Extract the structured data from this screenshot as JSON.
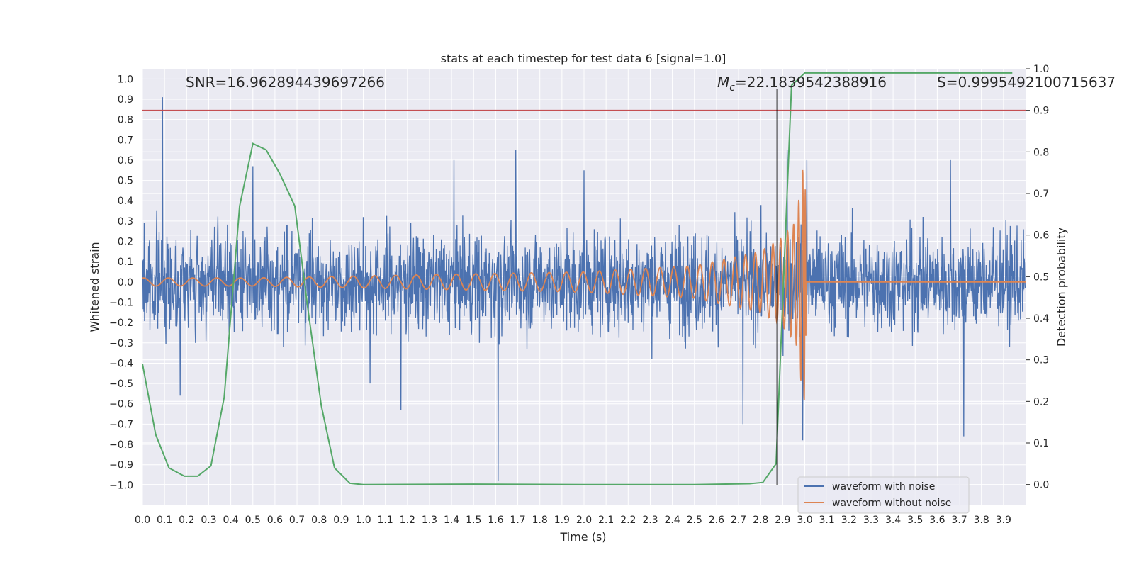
{
  "chart_data": {
    "type": "line",
    "title": "stats at each timestep for test data 6 [signal=1.0]",
    "xlabel": "Time (s)",
    "ylabel": "Whitened strain",
    "ylabel_right": "Detection probability",
    "xlim": [
      0.0,
      4.0
    ],
    "ylim": [
      -1.1,
      1.05
    ],
    "ylim_right": [
      -0.05,
      1.0
    ],
    "x_ticks": [
      "0.0",
      "0.1",
      "0.2",
      "0.3",
      "0.4",
      "0.5",
      "0.6",
      "0.7",
      "0.8",
      "0.9",
      "1.0",
      "1.1",
      "1.2",
      "1.3",
      "1.4",
      "1.5",
      "1.6",
      "1.7",
      "1.8",
      "1.9",
      "2.0",
      "2.1",
      "2.2",
      "2.3",
      "2.4",
      "2.5",
      "2.6",
      "2.7",
      "2.8",
      "2.9",
      "3.0",
      "3.1",
      "3.2",
      "3.3",
      "3.4",
      "3.5",
      "3.6",
      "3.7",
      "3.8",
      "3.9"
    ],
    "y_ticks": [
      "1.0",
      "0.9",
      "0.8",
      "0.7",
      "0.6",
      "0.5",
      "0.4",
      "0.3",
      "0.2",
      "0.1",
      "0.0",
      "−0.1",
      "−0.2",
      "−0.3",
      "−0.4",
      "−0.5",
      "−0.6",
      "−0.7",
      "−0.8",
      "−0.9",
      "−1.0"
    ],
    "y_ticks_right": [
      "1.0",
      "0.9",
      "0.8",
      "0.7",
      "0.6",
      "0.5",
      "0.4",
      "0.3",
      "0.2",
      "0.1",
      "0.0"
    ],
    "grid": true,
    "legend_position": "lower-right",
    "annotations": {
      "snr": "SNR=16.962894439697266",
      "mc_symbol": "M",
      "mc_subscript": "c",
      "mc_value": "=22.1839542388916",
      "s_value": "S=0.9995492100715637"
    },
    "threshold_right": 0.9,
    "merger_time": 2.875,
    "colors": {
      "noisy": "#4c72b0",
      "clean": "#dd8452",
      "probability": "#55a868",
      "threshold": "#c44e52",
      "marker": "#000000",
      "background": "#eaeaf2",
      "grid": "#ffffff"
    },
    "series": [
      {
        "name": "waveform with noise",
        "axis": "left",
        "description_points": [
          [
            0.09,
            0.91
          ],
          [
            0.17,
            -0.56
          ],
          [
            0.5,
            0.57
          ],
          [
            1.03,
            -0.5
          ],
          [
            1.17,
            -0.63
          ],
          [
            1.41,
            0.6
          ],
          [
            1.61,
            -0.98
          ],
          [
            1.69,
            0.65
          ],
          [
            2.0,
            0.55
          ],
          [
            2.72,
            -0.7
          ],
          [
            2.92,
            0.65
          ],
          [
            2.99,
            -0.78
          ],
          [
            3.01,
            0.6
          ],
          [
            3.66,
            0.6
          ],
          [
            3.72,
            -0.76
          ]
        ]
      },
      {
        "name": "waveform without noise",
        "axis": "left",
        "envelope_points": [
          [
            0.0,
            0.02
          ],
          [
            0.5,
            0.02
          ],
          [
            1.0,
            0.03
          ],
          [
            1.5,
            0.04
          ],
          [
            2.0,
            0.05
          ],
          [
            2.5,
            0.08
          ],
          [
            2.8,
            0.15
          ],
          [
            2.9,
            0.22
          ],
          [
            2.96,
            0.3
          ],
          [
            2.99,
            0.55
          ],
          [
            3.0,
            0.6
          ],
          [
            3.01,
            0.0
          ]
        ]
      },
      {
        "name": "",
        "axis": "right",
        "x": [
          0.0,
          0.06,
          0.12,
          0.19,
          0.25,
          0.31,
          0.37,
          0.44,
          0.5,
          0.56,
          0.62,
          0.69,
          0.75,
          0.81,
          0.87,
          0.94,
          1.0,
          1.5,
          2.0,
          2.5,
          2.75,
          2.81,
          2.87,
          2.94,
          3.0,
          3.5,
          3.94
        ],
        "y": [
          0.29,
          0.12,
          0.04,
          0.02,
          0.02,
          0.045,
          0.21,
          0.67,
          0.82,
          0.805,
          0.75,
          0.67,
          0.42,
          0.19,
          0.04,
          0.003,
          0.0,
          0.001,
          0.0,
          0.0,
          0.002,
          0.005,
          0.05,
          0.96,
          0.99,
          0.99,
          0.99
        ]
      }
    ]
  }
}
